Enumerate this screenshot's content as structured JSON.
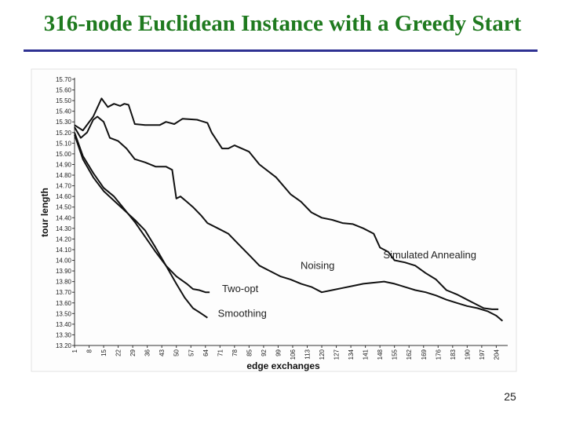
{
  "slide": {
    "title": "316-node Euclidean Instance with a Greedy Start",
    "page_number": "25",
    "title_color": "#1f7a1f",
    "rule_color": "#2e3192"
  },
  "chart_data": {
    "type": "line",
    "title": "",
    "xlabel": "edge exchanges",
    "ylabel": "tour length",
    "ylim": [
      13.2,
      15.7
    ],
    "xlim": [
      1,
      208
    ],
    "y_ticks": [
      "13.20",
      "13.30",
      "13.40",
      "13.50",
      "13.60",
      "13.70",
      "13.80",
      "13.90",
      "14.00",
      "14.10",
      "14.20",
      "14.30",
      "14.40",
      "14.50",
      "14.60",
      "14.70",
      "14.80",
      "14.90",
      "15.00",
      "15.10",
      "15.20",
      "15.30",
      "15.40",
      "15.50",
      "15.60",
      "15.70"
    ],
    "x_ticks": [
      "1",
      "8",
      "15",
      "22",
      "29",
      "36",
      "43",
      "50",
      "57",
      "64",
      "71",
      "78",
      "85",
      "92",
      "99",
      "106",
      "113",
      "120",
      "127",
      "134",
      "141",
      "148",
      "155",
      "162",
      "169",
      "176",
      "183",
      "190",
      "197",
      "204"
    ],
    "grid": false,
    "legend": "inline labels",
    "series": [
      {
        "name": "Simulated Annealing",
        "color": "#111111",
        "x": [
          1,
          5,
          10,
          14,
          17,
          20,
          23,
          25,
          27,
          30,
          35,
          42,
          45,
          49,
          53,
          60,
          65,
          67,
          72,
          75,
          78,
          85,
          90,
          98,
          105,
          110,
          115,
          120,
          125,
          130,
          135,
          140,
          145,
          148,
          152,
          155,
          160,
          165,
          170,
          175,
          180,
          185,
          190,
          195,
          198,
          202,
          205
        ],
        "y": [
          15.27,
          15.22,
          15.35,
          15.52,
          15.44,
          15.47,
          15.45,
          15.47,
          15.46,
          15.28,
          15.27,
          15.27,
          15.3,
          15.28,
          15.33,
          15.32,
          15.29,
          15.2,
          15.05,
          15.05,
          15.08,
          15.02,
          14.9,
          14.78,
          14.62,
          14.55,
          14.45,
          14.4,
          14.38,
          14.35,
          14.34,
          14.3,
          14.25,
          14.12,
          14.08,
          14.0,
          13.98,
          13.95,
          13.88,
          13.82,
          13.72,
          13.68,
          13.63,
          13.58,
          13.55,
          13.54,
          13.54
        ]
      },
      {
        "name": "Noising",
        "color": "#111111",
        "x": [
          1,
          4,
          7,
          10,
          12,
          15,
          18,
          22,
          26,
          30,
          35,
          40,
          45,
          48,
          50,
          52,
          55,
          58,
          62,
          65,
          70,
          75,
          80,
          85,
          90,
          95,
          100,
          105,
          110,
          115,
          120,
          125,
          130,
          135,
          140,
          145,
          150,
          155,
          160,
          165,
          170,
          175,
          180,
          185,
          190,
          195,
          200,
          204,
          207
        ],
        "y": [
          15.25,
          15.15,
          15.2,
          15.32,
          15.35,
          15.3,
          15.15,
          15.12,
          15.05,
          14.95,
          14.92,
          14.88,
          14.88,
          14.85,
          14.58,
          14.6,
          14.55,
          14.5,
          14.42,
          14.35,
          14.3,
          14.25,
          14.15,
          14.05,
          13.95,
          13.9,
          13.85,
          13.82,
          13.78,
          13.75,
          13.7,
          13.72,
          13.74,
          13.76,
          13.78,
          13.79,
          13.8,
          13.78,
          13.75,
          13.72,
          13.7,
          13.67,
          13.63,
          13.6,
          13.57,
          13.55,
          13.52,
          13.48,
          13.43
        ]
      },
      {
        "name": "Two-opt",
        "color": "#111111",
        "x": [
          1,
          5,
          10,
          15,
          20,
          25,
          30,
          35,
          40,
          45,
          50,
          55,
          58,
          61,
          64,
          66
        ],
        "y": [
          15.2,
          14.98,
          14.82,
          14.68,
          14.6,
          14.48,
          14.36,
          14.22,
          14.08,
          13.95,
          13.85,
          13.78,
          13.73,
          13.72,
          13.7,
          13.7
        ]
      },
      {
        "name": "Smoothing",
        "color": "#111111",
        "x": [
          1,
          5,
          10,
          15,
          20,
          25,
          30,
          35,
          40,
          45,
          50,
          54,
          58,
          62,
          65
        ],
        "y": [
          15.18,
          14.95,
          14.78,
          14.65,
          14.56,
          14.47,
          14.38,
          14.28,
          14.12,
          13.95,
          13.78,
          13.65,
          13.55,
          13.5,
          13.46
        ]
      }
    ]
  }
}
